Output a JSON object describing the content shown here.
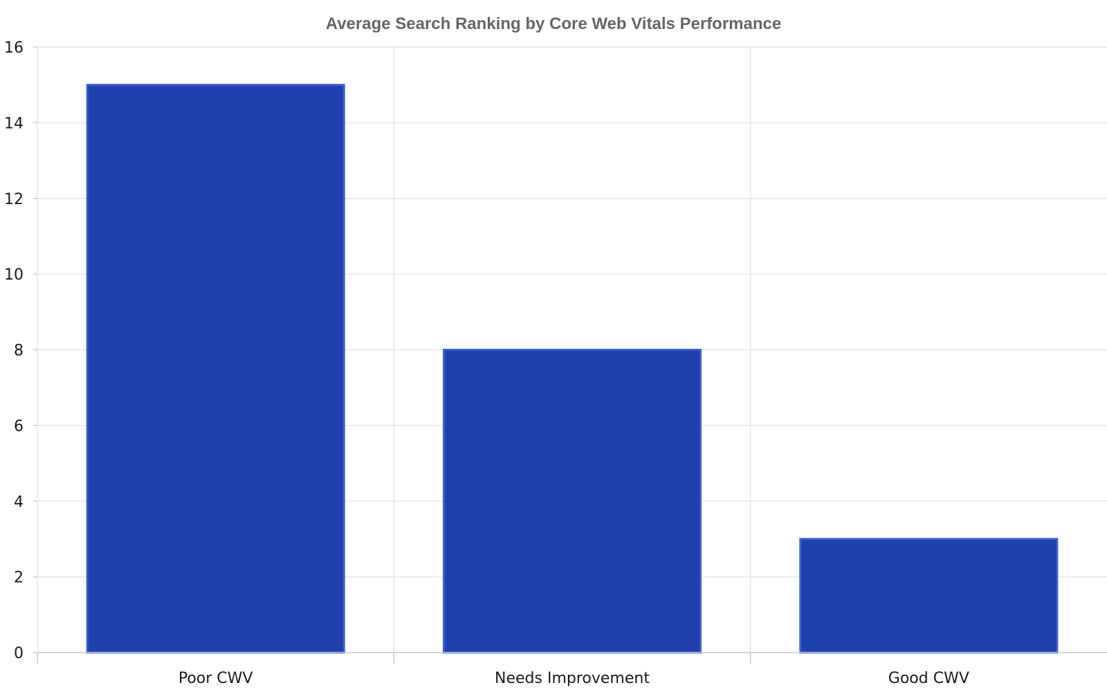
{
  "chart_data": {
    "type": "bar",
    "title": "Average Search Ranking by Core Web Vitals Performance",
    "xlabel": "",
    "ylabel": "",
    "categories": [
      "Poor CWV",
      "Needs Improvement",
      "Good CWV"
    ],
    "values": [
      15,
      8,
      3
    ],
    "ylim": [
      0,
      16
    ],
    "yticks": [
      "0",
      "2",
      "4",
      "6",
      "8",
      "10",
      "12",
      "14",
      "16"
    ],
    "grid": true,
    "legend": "none",
    "colors": {
      "bar_fill": "#1f40ad",
      "bar_edge": "#3a5ed4",
      "grid": "#e6e6e6",
      "title": "#666666"
    }
  }
}
